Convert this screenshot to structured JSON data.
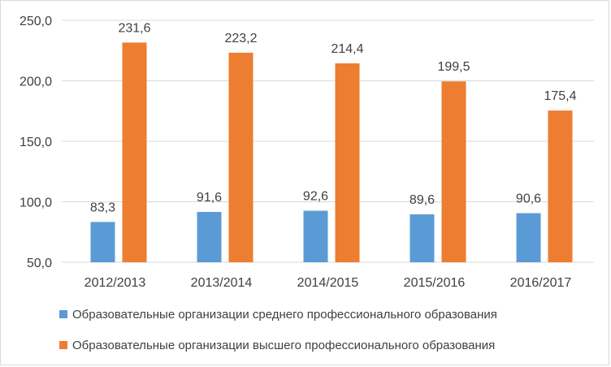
{
  "chart_data": {
    "type": "bar",
    "title": "",
    "xlabel": "",
    "ylabel": "",
    "categories": [
      "2012/2013",
      "2013/2014",
      "2014/2015",
      "2015/2016",
      "2016/2017"
    ],
    "series": [
      {
        "name": "Образовательные организации среднего профессионального образования",
        "color": "#5b9bd5",
        "values": [
          83.3,
          91.6,
          92.6,
          89.6,
          90.6
        ],
        "labels": [
          "83,3",
          "91,6",
          "92,6",
          "89,6",
          "90,6"
        ]
      },
      {
        "name": "Образовательные организации высшего профессионального образования",
        "color": "#ed7d31",
        "values": [
          231.6,
          223.2,
          214.4,
          199.5,
          175.4
        ],
        "labels": [
          "231,6",
          "223,2",
          "214,4",
          "199,5",
          "175,4"
        ]
      }
    ],
    "ylim": [
      50,
      250
    ],
    "yticks": [
      50,
      100,
      150,
      200,
      250
    ],
    "ytick_labels": [
      "50,0",
      "100,0",
      "150,0",
      "200,0",
      "250,0"
    ],
    "grid": true,
    "legend_position": "bottom"
  }
}
